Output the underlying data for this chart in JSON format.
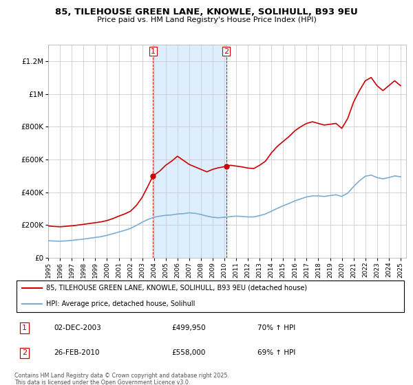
{
  "title_line1": "85, TILEHOUSE GREEN LANE, KNOWLE, SOLIHULL, B93 9EU",
  "title_line2": "Price paid vs. HM Land Registry's House Price Index (HPI)",
  "legend_line1": "85, TILEHOUSE GREEN LANE, KNOWLE, SOLIHULL, B93 9EU (detached house)",
  "legend_line2": "HPI: Average price, detached house, Solihull",
  "footer": "Contains HM Land Registry data © Crown copyright and database right 2025.\nThis data is licensed under the Open Government Licence v3.0.",
  "purchase1_label": "1",
  "purchase1_date": "02-DEC-2003",
  "purchase1_price": "£499,950",
  "purchase1_hpi": "70% ↑ HPI",
  "purchase2_label": "2",
  "purchase2_date": "26-FEB-2010",
  "purchase2_price": "£558,000",
  "purchase2_hpi": "69% ↑ HPI",
  "purchase1_x": 2003.92,
  "purchase1_y": 499950,
  "purchase2_x": 2010.15,
  "purchase2_y": 558000,
  "shaded_region1_x0": 2003.92,
  "shaded_region1_x1": 2010.15,
  "red_line_color": "#cc0000",
  "blue_line_color": "#7aadd4",
  "shaded_color": "#ddeeff",
  "background_color": "#ffffff",
  "grid_color": "#cccccc",
  "ylim_min": 0,
  "ylim_max": 1300000,
  "xlim_min": 1995,
  "xlim_max": 2025.5,
  "yticks": [
    0,
    200000,
    400000,
    600000,
    800000,
    1000000,
    1200000
  ],
  "ytick_labels": [
    "£0",
    "£200K",
    "£400K",
    "£600K",
    "£800K",
    "£1M",
    "£1.2M"
  ],
  "red_x": [
    1995.0,
    1995.5,
    1996.0,
    1996.5,
    1997.0,
    1997.5,
    1998.0,
    1998.5,
    1999.0,
    1999.5,
    2000.0,
    2000.5,
    2001.0,
    2001.5,
    2002.0,
    2002.5,
    2003.0,
    2003.5,
    2003.92,
    2004.5,
    2005.0,
    2005.5,
    2006.0,
    2006.5,
    2007.0,
    2007.5,
    2008.0,
    2008.5,
    2009.0,
    2009.5,
    2010.15,
    2010.5,
    2011.0,
    2011.5,
    2012.0,
    2012.5,
    2013.0,
    2013.5,
    2014.0,
    2014.5,
    2015.0,
    2015.5,
    2016.0,
    2016.5,
    2017.0,
    2017.5,
    2018.0,
    2018.5,
    2019.0,
    2019.5,
    2020.0,
    2020.5,
    2021.0,
    2021.5,
    2022.0,
    2022.5,
    2023.0,
    2023.5,
    2024.0,
    2024.5,
    2025.0
  ],
  "red_y": [
    195000,
    192000,
    190000,
    193000,
    196000,
    200000,
    205000,
    210000,
    215000,
    220000,
    228000,
    240000,
    255000,
    268000,
    285000,
    320000,
    370000,
    440000,
    499950,
    530000,
    565000,
    590000,
    620000,
    595000,
    570000,
    555000,
    540000,
    525000,
    540000,
    550000,
    558000,
    565000,
    560000,
    555000,
    548000,
    545000,
    565000,
    590000,
    640000,
    680000,
    710000,
    740000,
    775000,
    800000,
    820000,
    830000,
    820000,
    810000,
    815000,
    820000,
    790000,
    850000,
    950000,
    1020000,
    1080000,
    1100000,
    1050000,
    1020000,
    1050000,
    1080000,
    1050000
  ],
  "blue_x": [
    1995.0,
    1995.5,
    1996.0,
    1996.5,
    1997.0,
    1997.5,
    1998.0,
    1998.5,
    1999.0,
    1999.5,
    2000.0,
    2000.5,
    2001.0,
    2001.5,
    2002.0,
    2002.5,
    2003.0,
    2003.5,
    2004.0,
    2004.5,
    2005.0,
    2005.5,
    2006.0,
    2006.5,
    2007.0,
    2007.5,
    2008.0,
    2008.5,
    2009.0,
    2009.5,
    2010.0,
    2010.5,
    2011.0,
    2011.5,
    2012.0,
    2012.5,
    2013.0,
    2013.5,
    2014.0,
    2014.5,
    2015.0,
    2015.5,
    2016.0,
    2016.5,
    2017.0,
    2017.5,
    2018.0,
    2018.5,
    2019.0,
    2019.5,
    2020.0,
    2020.5,
    2021.0,
    2021.5,
    2022.0,
    2022.5,
    2023.0,
    2023.5,
    2024.0,
    2024.5,
    2025.0
  ],
  "blue_y": [
    105000,
    103000,
    102000,
    104000,
    107000,
    111000,
    115000,
    120000,
    125000,
    130000,
    138000,
    148000,
    158000,
    168000,
    180000,
    198000,
    218000,
    235000,
    248000,
    255000,
    260000,
    262000,
    268000,
    270000,
    275000,
    272000,
    265000,
    255000,
    248000,
    245000,
    248000,
    252000,
    255000,
    253000,
    250000,
    250000,
    258000,
    268000,
    285000,
    302000,
    318000,
    332000,
    348000,
    360000,
    372000,
    378000,
    378000,
    375000,
    380000,
    385000,
    375000,
    395000,
    435000,
    470000,
    498000,
    505000,
    490000,
    482000,
    490000,
    500000,
    495000
  ]
}
